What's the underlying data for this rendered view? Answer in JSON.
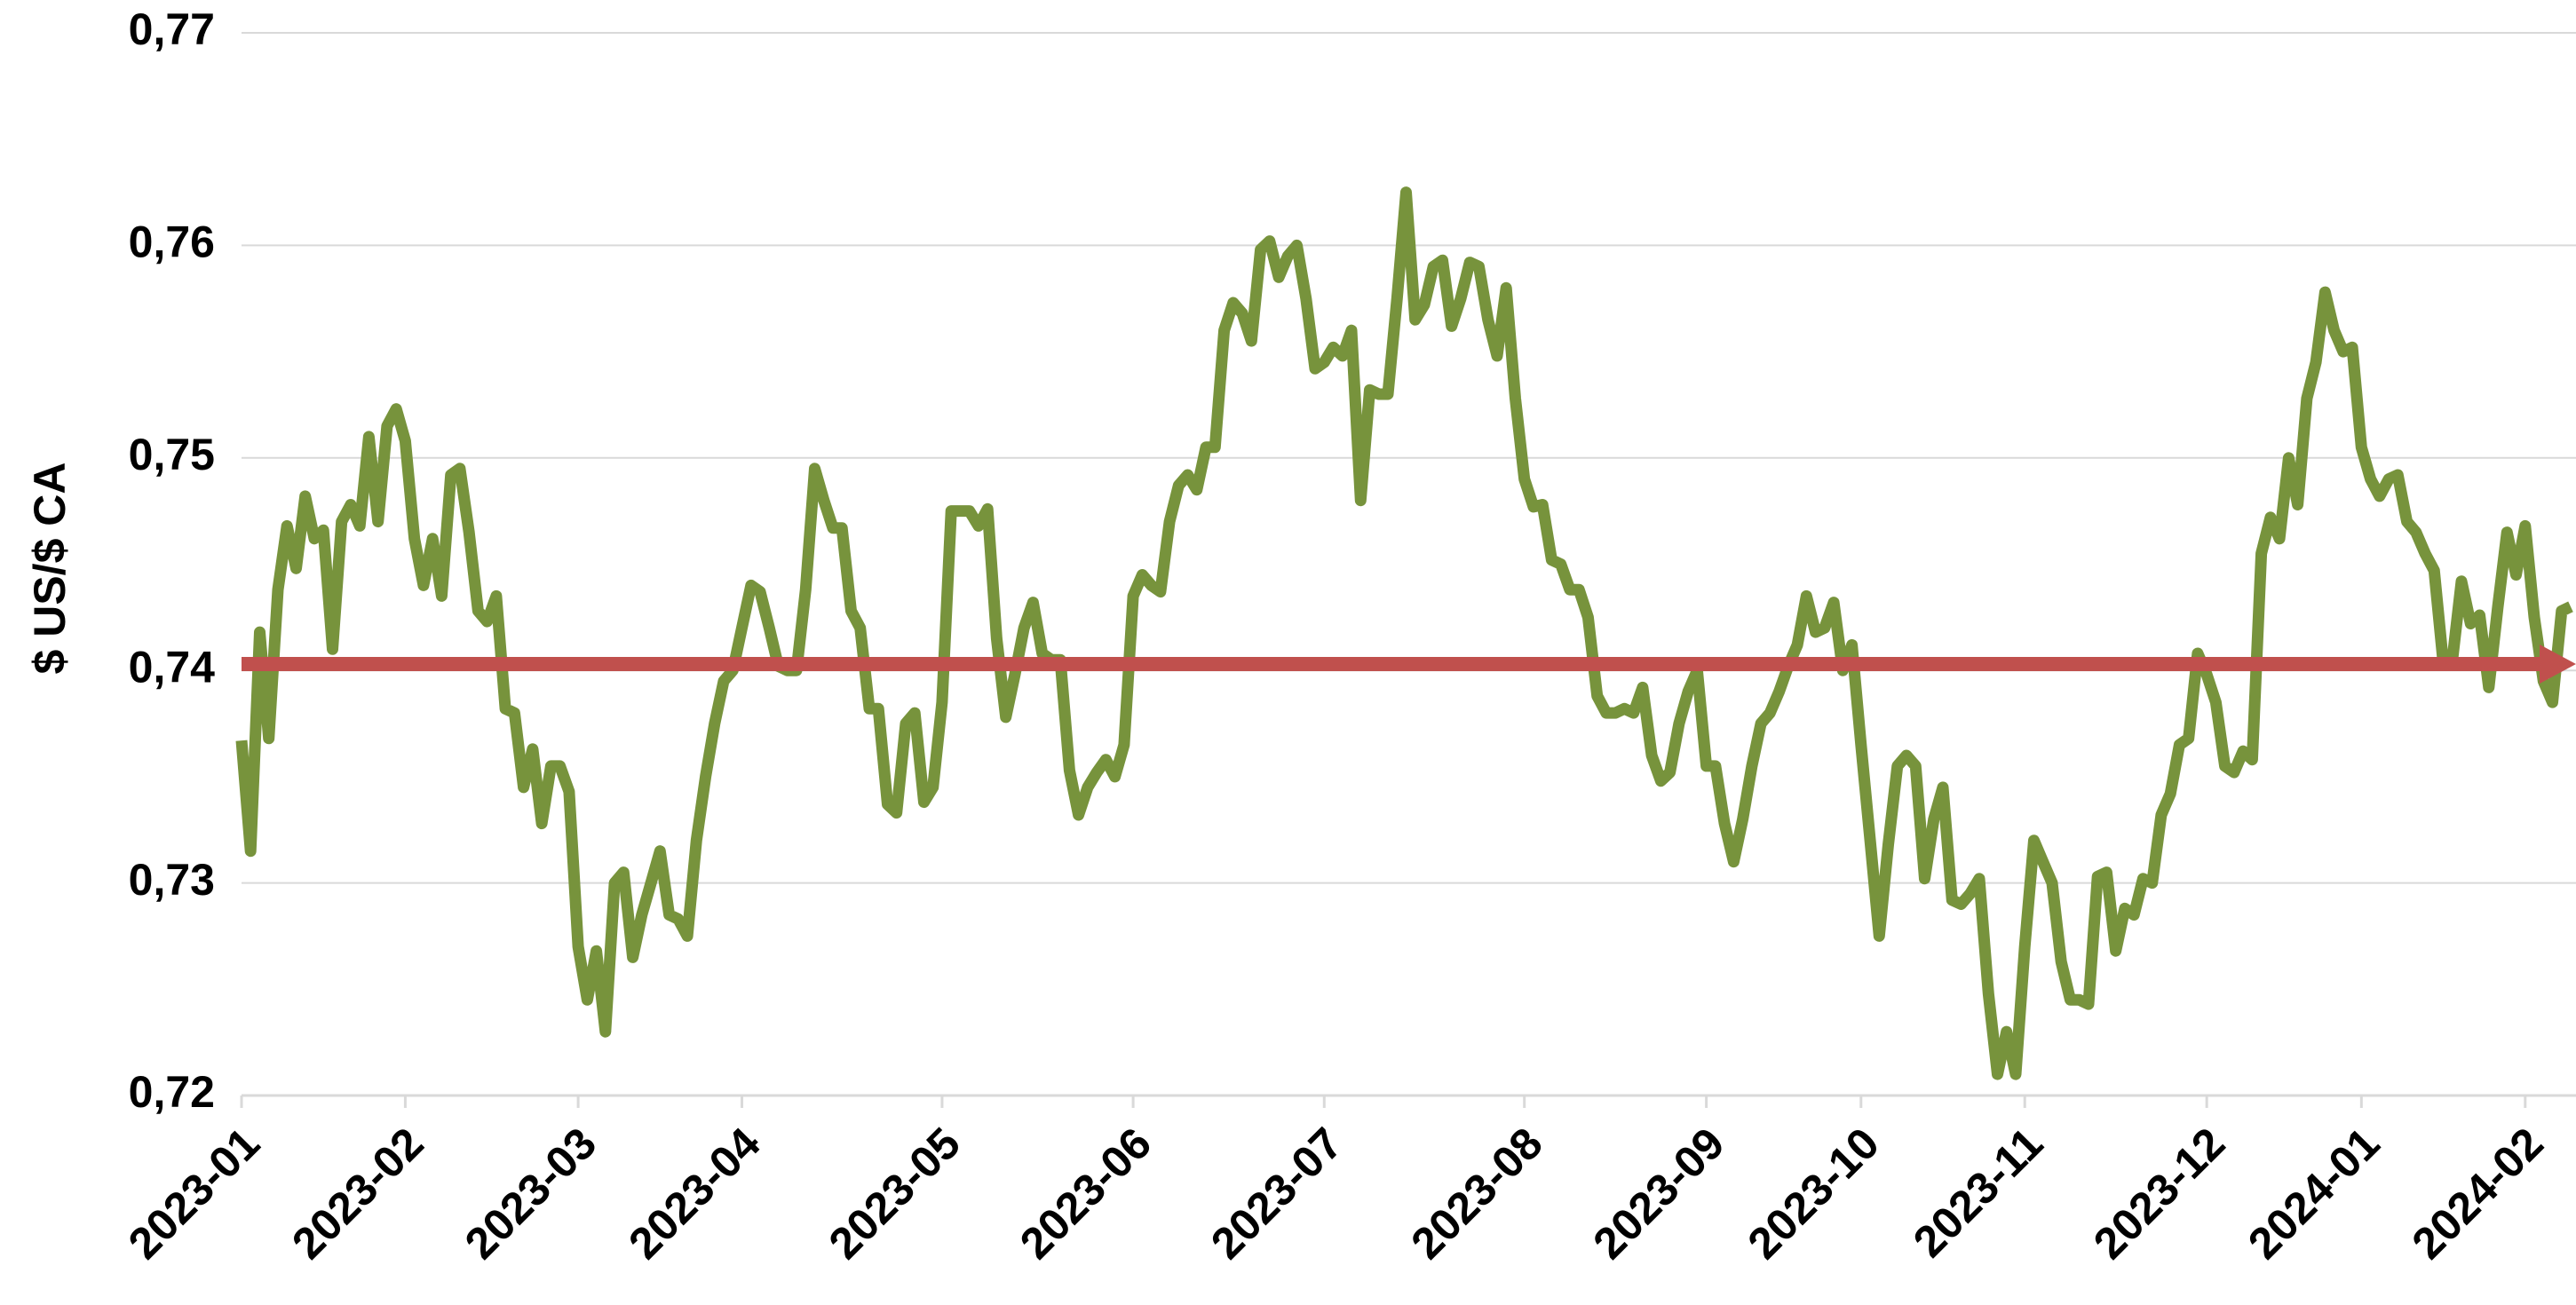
{
  "chart_data": {
    "type": "line",
    "y_label": "$ US/$ CA",
    "categories": [
      "2023-01",
      null,
      null,
      null,
      null,
      null,
      null,
      null,
      null,
      null,
      null,
      null,
      null,
      null,
      null,
      null,
      null,
      null,
      "2023-02",
      null,
      null,
      null,
      null,
      null,
      null,
      null,
      null,
      null,
      null,
      null,
      null,
      null,
      null,
      null,
      null,
      null,
      null,
      "2023-03",
      null,
      null,
      null,
      null,
      null,
      null,
      null,
      null,
      null,
      null,
      null,
      null,
      null,
      null,
      null,
      null,
      null,
      "2023-04",
      null,
      null,
      null,
      null,
      null,
      null,
      null,
      null,
      null,
      null,
      null,
      null,
      null,
      null,
      null,
      null,
      null,
      null,
      null,
      null,
      null,
      "2023-05",
      null,
      null,
      null,
      null,
      null,
      null,
      null,
      null,
      null,
      null,
      null,
      null,
      null,
      null,
      null,
      null,
      null,
      null,
      null,
      null,
      "2023-06",
      null,
      null,
      null,
      null,
      null,
      null,
      null,
      null,
      null,
      null,
      null,
      null,
      null,
      null,
      null,
      null,
      null,
      null,
      null,
      null,
      "2023-07",
      null,
      null,
      null,
      null,
      null,
      null,
      null,
      null,
      null,
      null,
      null,
      null,
      null,
      null,
      null,
      null,
      null,
      null,
      null,
      null,
      null,
      "2023-08",
      null,
      null,
      null,
      null,
      null,
      null,
      null,
      null,
      null,
      null,
      null,
      null,
      null,
      null,
      null,
      null,
      null,
      null,
      null,
      "2023-09",
      null,
      null,
      null,
      null,
      null,
      null,
      null,
      null,
      null,
      null,
      null,
      null,
      null,
      null,
      null,
      null,
      "2023-10",
      null,
      null,
      null,
      null,
      null,
      null,
      null,
      null,
      null,
      null,
      null,
      null,
      null,
      null,
      null,
      null,
      null,
      "2023-11",
      null,
      null,
      null,
      null,
      null,
      null,
      null,
      null,
      null,
      null,
      null,
      null,
      null,
      null,
      null,
      null,
      null,
      null,
      null,
      "2023-12",
      null,
      null,
      null,
      null,
      null,
      null,
      null,
      null,
      null,
      null,
      null,
      null,
      null,
      null,
      null,
      null,
      "2024-01",
      null,
      null,
      null,
      null,
      null,
      null,
      null,
      null,
      null,
      null,
      null,
      null,
      null,
      null,
      null,
      null,
      null,
      "2024-02",
      null,
      null,
      null,
      null,
      null
    ],
    "series": [
      {
        "color": "#77933c",
        "values": [
          0.7367,
          0.7315,
          0.7418,
          0.7368,
          0.7438,
          0.7468,
          0.7448,
          0.7482,
          0.7462,
          0.7466,
          0.741,
          0.747,
          0.7478,
          0.7468,
          0.751,
          0.747,
          0.7515,
          0.7523,
          0.7508,
          0.7462,
          0.744,
          0.7462,
          0.7435,
          0.7492,
          0.7495,
          0.7465,
          0.7428,
          0.7423,
          0.7435,
          0.7382,
          0.738,
          0.7345,
          0.7363,
          0.7328,
          0.7355,
          0.7355,
          0.7343,
          0.727,
          0.7245,
          0.7268,
          0.723,
          0.73,
          0.7305,
          0.7265,
          0.7285,
          0.73,
          0.7315,
          0.7285,
          0.7283,
          0.7275,
          0.732,
          0.735,
          0.7375,
          0.7395,
          0.74,
          0.742,
          0.744,
          0.7437,
          0.742,
          0.7402,
          0.74,
          0.74,
          0.7438,
          0.7495,
          0.748,
          0.7467,
          0.7467,
          0.7428,
          0.742,
          0.7382,
          0.7382,
          0.7337,
          0.7333,
          0.7375,
          0.738,
          0.7338,
          0.7345,
          0.7385,
          0.7475,
          0.7475,
          0.7475,
          0.7468,
          0.7476,
          0.7415,
          0.7378,
          0.7398,
          0.742,
          0.7432,
          0.7408,
          0.7405,
          0.7405,
          0.7353,
          0.7332,
          0.7345,
          0.7352,
          0.7358,
          0.735,
          0.7365,
          0.7435,
          0.7445,
          0.744,
          0.7437,
          0.747,
          0.7487,
          0.7492,
          0.7485,
          0.7505,
          0.7505,
          0.756,
          0.7573,
          0.7568,
          0.7555,
          0.7598,
          0.7602,
          0.7585,
          0.7595,
          0.76,
          0.7575,
          0.7542,
          0.7545,
          0.7552,
          0.7548,
          0.756,
          0.748,
          0.7532,
          0.753,
          0.753,
          0.7575,
          0.7625,
          0.7565,
          0.7572,
          0.759,
          0.7593,
          0.7562,
          0.7575,
          0.7592,
          0.759,
          0.7565,
          0.7548,
          0.758,
          0.7528,
          0.749,
          0.7477,
          0.7478,
          0.7452,
          0.745,
          0.7438,
          0.7438,
          0.7425,
          0.7388,
          0.738,
          0.738,
          0.7382,
          0.738,
          0.7392,
          0.736,
          0.7348,
          0.7352,
          0.7375,
          0.739,
          0.74,
          0.7355,
          0.7355,
          0.7328,
          0.731,
          0.733,
          0.7355,
          0.7375,
          0.738,
          0.739,
          0.7402,
          0.7412,
          0.7435,
          0.7418,
          0.742,
          0.7432,
          0.74,
          0.7412,
          0.7365,
          0.732,
          0.7275,
          0.7318,
          0.7355,
          0.736,
          0.7355,
          0.7302,
          0.733,
          0.7345,
          0.7292,
          0.729,
          0.7295,
          0.7302,
          0.7248,
          0.721,
          0.723,
          0.721,
          0.727,
          0.732,
          0.731,
          0.73,
          0.7263,
          0.7245,
          0.7245,
          0.7243,
          0.7303,
          0.7305,
          0.7268,
          0.7288,
          0.7285,
          0.7302,
          0.73,
          0.7332,
          0.7342,
          0.7365,
          0.7368,
          0.7408,
          0.7398,
          0.7385,
          0.7355,
          0.7352,
          0.7362,
          0.7358,
          0.7455,
          0.7472,
          0.7462,
          0.75,
          0.7478,
          0.7528,
          0.7545,
          0.7578,
          0.756,
          0.755,
          0.7552,
          0.7505,
          0.749,
          0.7482,
          0.749,
          0.7492,
          0.747,
          0.7465,
          0.7455,
          0.7447,
          0.7403,
          0.7405,
          0.7442,
          0.7422,
          0.7426,
          0.7392,
          0.743,
          0.7465,
          0.7445,
          0.7468,
          0.7425,
          0.7395,
          0.7385,
          0.7428,
          0.743
        ]
      }
    ],
    "reference_line": {
      "value": 0.7403,
      "color": "#c0504d"
    },
    "ylim": [
      0.72,
      0.77
    ],
    "yticks": [
      {
        "value": 0.72,
        "label": "0,72"
      },
      {
        "value": 0.73,
        "label": "0,73"
      },
      {
        "value": 0.74,
        "label": "0,74"
      },
      {
        "value": 0.75,
        "label": "0,75"
      },
      {
        "value": 0.76,
        "label": "0,76"
      },
      {
        "value": 0.77,
        "label": "0,77"
      }
    ],
    "grid": true
  }
}
